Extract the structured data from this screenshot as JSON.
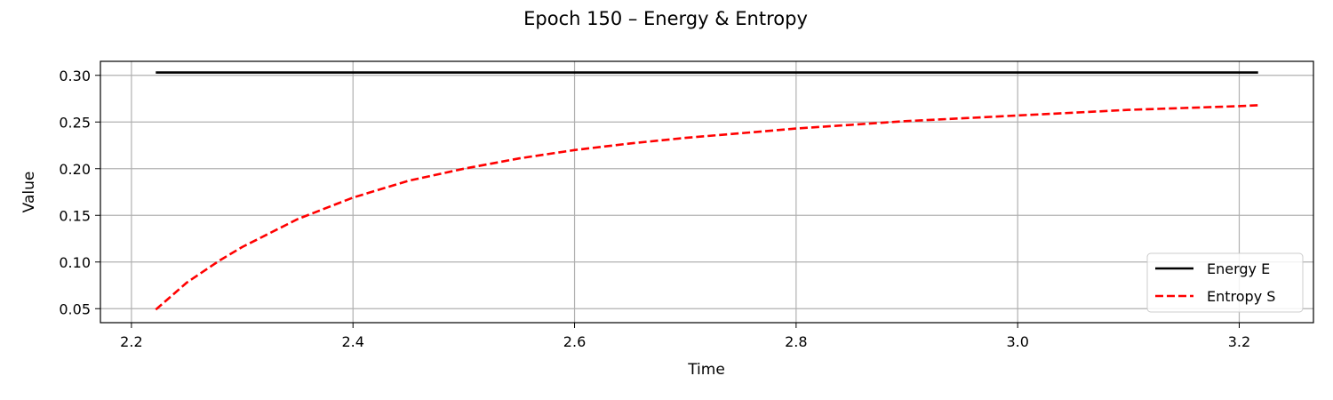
{
  "chart_data": {
    "type": "line",
    "title": "Epoch 150 – Energy & Entropy",
    "xlabel": "Time",
    "ylabel": "Value",
    "xlim": [
      2.172,
      3.267
    ],
    "ylim": [
      0.035,
      0.315
    ],
    "xticks": [
      2.2,
      2.4,
      2.6,
      2.8,
      3.0,
      3.2
    ],
    "xtick_labels": [
      "2.2",
      "2.4",
      "2.6",
      "2.8",
      "3.0",
      "3.2"
    ],
    "yticks": [
      0.05,
      0.1,
      0.15,
      0.2,
      0.25,
      0.3
    ],
    "ytick_labels": [
      "0.05",
      "0.10",
      "0.15",
      "0.20",
      "0.25",
      "0.30"
    ],
    "grid": true,
    "legend_position": "lower-right",
    "series": [
      {
        "name": "Energy E",
        "color": "#000000",
        "style": "solid",
        "x": [
          2.222,
          2.4,
          2.6,
          2.8,
          3.0,
          3.2,
          3.217
        ],
        "y": [
          0.303,
          0.303,
          0.303,
          0.303,
          0.303,
          0.303,
          0.303
        ]
      },
      {
        "name": "Entropy S",
        "color": "#ff0000",
        "style": "dashed",
        "x": [
          2.222,
          2.25,
          2.28,
          2.3,
          2.35,
          2.4,
          2.45,
          2.5,
          2.55,
          2.6,
          2.65,
          2.7,
          2.75,
          2.8,
          2.85,
          2.9,
          2.95,
          3.0,
          3.05,
          3.1,
          3.15,
          3.2,
          3.217
        ],
        "y": [
          0.049,
          0.078,
          0.102,
          0.116,
          0.146,
          0.169,
          0.187,
          0.2,
          0.211,
          0.22,
          0.227,
          0.233,
          0.238,
          0.243,
          0.247,
          0.251,
          0.254,
          0.257,
          0.26,
          0.263,
          0.265,
          0.267,
          0.268
        ]
      }
    ]
  }
}
